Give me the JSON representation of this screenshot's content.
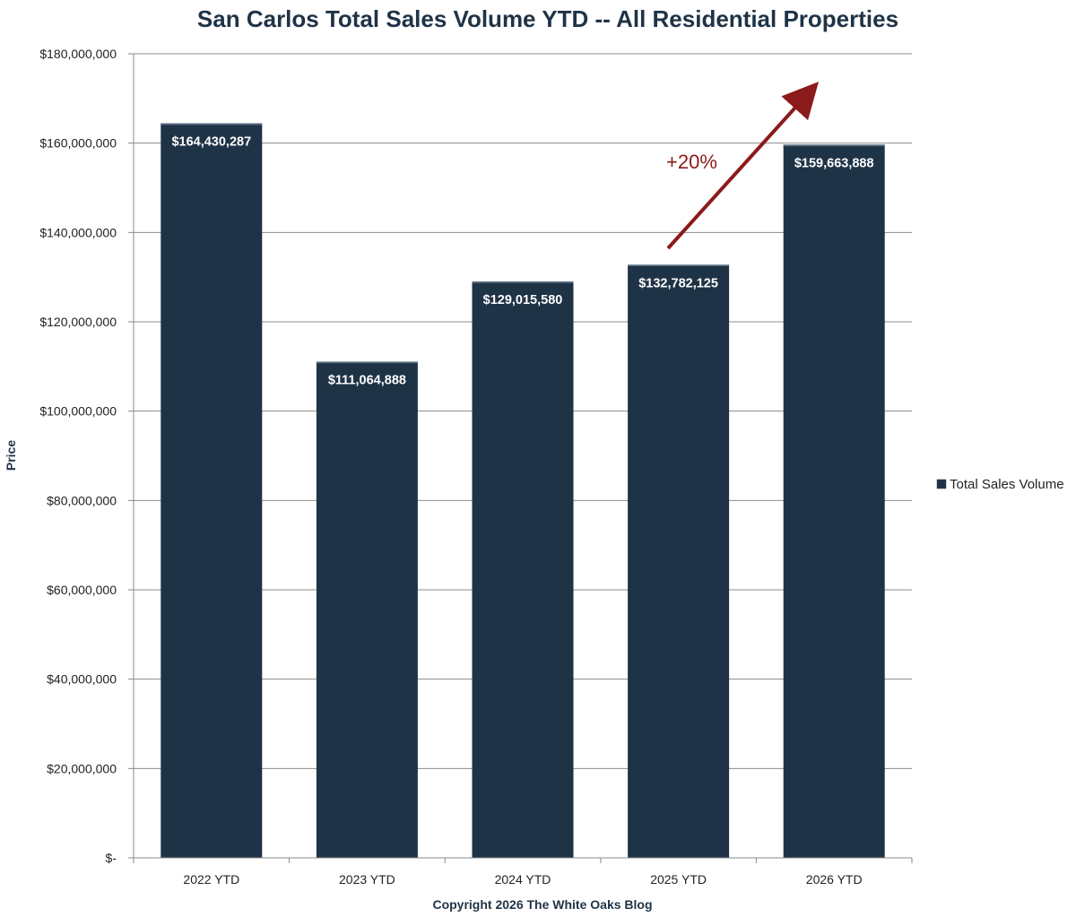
{
  "chart_data": {
    "type": "bar",
    "title": "San Carlos Total Sales Volume YTD -- All Residential Properties",
    "xlabel": "Copyright 2026 The White Oaks Blog",
    "ylabel": "Price",
    "categories": [
      "2022 YTD",
      "2023 YTD",
      "2024 YTD",
      "2025 YTD",
      "2026 YTD"
    ],
    "series": [
      {
        "name": "Total Sales Volume",
        "values": [
          164430287,
          111064888,
          129015580,
          132782125,
          159663888
        ],
        "labels": [
          "$164,430,287",
          "$111,064,888",
          "$129,015,580",
          "$132,782,125",
          "$159,663,888"
        ],
        "color": "#1f3347"
      }
    ],
    "ylim": [
      0,
      180000000
    ],
    "yticks": [
      0,
      20000000,
      40000000,
      60000000,
      80000000,
      100000000,
      120000000,
      140000000,
      160000000,
      180000000
    ],
    "ytick_labels": [
      "$-",
      "$20,000,000",
      "$40,000,000",
      "$60,000,000",
      "$80,000,000",
      "$100,000,000",
      "$120,000,000",
      "$140,000,000",
      "$160,000,000",
      "$180,000,000"
    ],
    "grid": true,
    "legend": "right",
    "annotation": {
      "text": "+20%",
      "color": "#8b1a1a",
      "from_category": "2025 YTD",
      "to_category": "2026 YTD"
    }
  }
}
